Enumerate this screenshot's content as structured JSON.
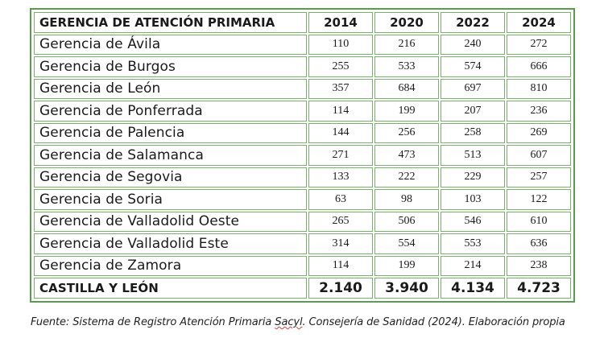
{
  "table": {
    "header": [
      "GERENCIA DE ATENCIÓN PRIMARIA",
      "2014",
      "2020",
      "2022",
      "2024"
    ],
    "rows": [
      {
        "name": "Gerencia de Ávila",
        "values": [
          "110",
          "216",
          "240",
          "272"
        ]
      },
      {
        "name": "Gerencia de Burgos",
        "values": [
          "255",
          "533",
          "574",
          "666"
        ]
      },
      {
        "name": "Gerencia de León",
        "values": [
          "357",
          "684",
          "697",
          "810"
        ]
      },
      {
        "name": "Gerencia de Ponferrada",
        "values": [
          "114",
          "199",
          "207",
          "236"
        ]
      },
      {
        "name": "Gerencia de Palencia",
        "values": [
          "144",
          "256",
          "258",
          "269"
        ]
      },
      {
        "name": "Gerencia de Salamanca",
        "values": [
          "271",
          "473",
          "513",
          "607"
        ]
      },
      {
        "name": "Gerencia de Segovia",
        "values": [
          "133",
          "222",
          "229",
          "257"
        ]
      },
      {
        "name": "Gerencia de Soria",
        "values": [
          "63",
          "98",
          "103",
          "122"
        ]
      },
      {
        "name": "Gerencia de Valladolid Oeste",
        "values": [
          "265",
          "506",
          "546",
          "610"
        ]
      },
      {
        "name": "Gerencia de Valladolid Este",
        "values": [
          "314",
          "554",
          "553",
          "636"
        ]
      },
      {
        "name": "Gerencia de Zamora",
        "values": [
          "114",
          "199",
          "214",
          "238"
        ]
      }
    ],
    "total": {
      "name": "CASTILLA Y LEÓN",
      "values": [
        "2.140",
        "3.940",
        "4.134",
        "4.723"
      ]
    }
  },
  "source": {
    "before": "Fuente: Sistema de Registro Atención Primaria ",
    "squiggle": "Sacyl",
    "after": ". Consejería de Sanidad (2024). Elaboración propia"
  }
}
